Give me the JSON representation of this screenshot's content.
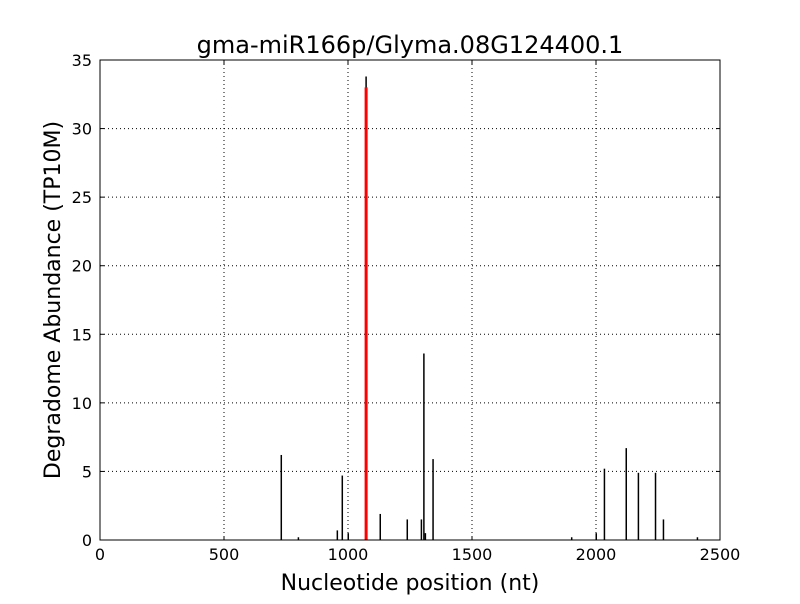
{
  "chart_data": {
    "type": "bar",
    "title": "gma-miR166p/Glyma.08G124400.1",
    "xlabel": "Nucleotide position (nt)",
    "ylabel": "Degradome Abundance (TP10M)",
    "xlim": [
      0,
      2500
    ],
    "ylim": [
      0,
      35
    ],
    "xticks": [
      0,
      500,
      1000,
      1500,
      2000,
      2500
    ],
    "yticks": [
      0,
      5,
      10,
      15,
      20,
      25,
      30,
      35
    ],
    "grid": true,
    "series": [
      {
        "color": "#000000",
        "points": [
          {
            "x": 731,
            "y": 6.2
          },
          {
            "x": 800,
            "y": 0.2
          },
          {
            "x": 957,
            "y": 0.7
          },
          {
            "x": 977,
            "y": 4.7
          },
          {
            "x": 1001,
            "y": 0.5
          },
          {
            "x": 1073,
            "y": 33.8
          },
          {
            "x": 1130,
            "y": 1.9
          },
          {
            "x": 1239,
            "y": 1.5
          },
          {
            "x": 1296,
            "y": 1.5
          },
          {
            "x": 1306,
            "y": 13.6
          },
          {
            "x": 1312,
            "y": 0.5
          },
          {
            "x": 1343,
            "y": 5.9
          },
          {
            "x": 1902,
            "y": 0.2
          },
          {
            "x": 2001,
            "y": 0.5
          },
          {
            "x": 2034,
            "y": 5.2
          },
          {
            "x": 2122,
            "y": 6.7
          },
          {
            "x": 2171,
            "y": 4.9
          },
          {
            "x": 2240,
            "y": 4.9
          },
          {
            "x": 2272,
            "y": 1.5
          },
          {
            "x": 2409,
            "y": 0.2
          }
        ]
      },
      {
        "color": "#ff0000",
        "points": [
          {
            "x": 1073,
            "y": 33.0
          }
        ]
      }
    ]
  }
}
